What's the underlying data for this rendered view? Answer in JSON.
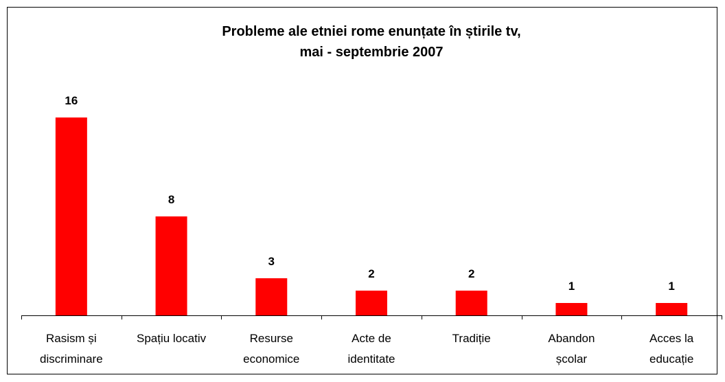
{
  "chart_data": {
    "type": "bar",
    "title": "Probleme ale etniei rome enunțate în știrile tv,\nmai - septembrie 2007",
    "categories": [
      "Rasism și\ndiscriminare",
      "Spațiu locativ",
      "Resurse\neconomice",
      "Acte de\nidentitate",
      "Tradiție",
      "Abandon\nșcolar",
      "Acces la\neducație"
    ],
    "values": [
      16,
      8,
      3,
      2,
      2,
      1,
      1
    ],
    "color": "#ff0000",
    "ylim": [
      0,
      20
    ]
  }
}
